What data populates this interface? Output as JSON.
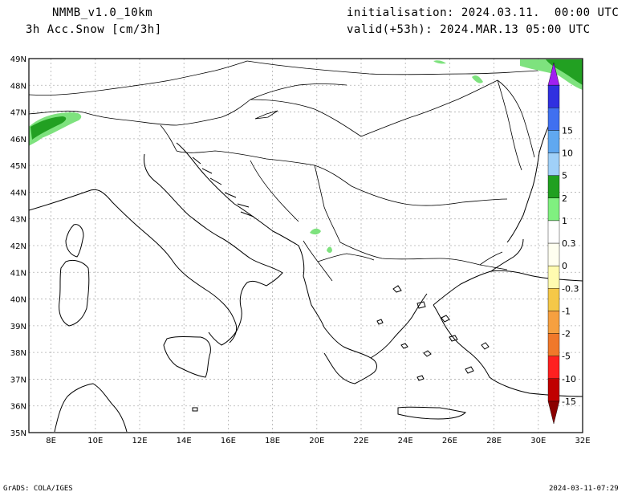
{
  "header": {
    "model": "NMMB_v1.0_10km",
    "variable": "3h Acc.Snow [cm/3h]",
    "init": "initialisation: 2024.03.11.  00:00 UTC",
    "valid": "valid(+53h): 2024.MAR.13 05:00 UTC"
  },
  "footer": {
    "left": "GrADS: COLA/IGES",
    "right": "2024-03-11-07:29"
  },
  "map": {
    "lon_min": 7,
    "lon_max": 32,
    "lat_min": 35,
    "lat_max": 49,
    "x_ticks": [
      {
        "value": 8,
        "label": "8E"
      },
      {
        "value": 10,
        "label": "10E"
      },
      {
        "value": 12,
        "label": "12E"
      },
      {
        "value": 14,
        "label": "14E"
      },
      {
        "value": 16,
        "label": "16E"
      },
      {
        "value": 18,
        "label": "18E"
      },
      {
        "value": 20,
        "label": "20E"
      },
      {
        "value": 22,
        "label": "22E"
      },
      {
        "value": 24,
        "label": "24E"
      },
      {
        "value": 26,
        "label": "26E"
      },
      {
        "value": 28,
        "label": "28E"
      },
      {
        "value": 30,
        "label": "30E"
      },
      {
        "value": 32,
        "label": "32E"
      }
    ],
    "y_ticks": [
      {
        "value": 49,
        "label": "49N"
      },
      {
        "value": 48,
        "label": "48N"
      },
      {
        "value": 47,
        "label": "47N"
      },
      {
        "value": 46,
        "label": "46N"
      },
      {
        "value": 45,
        "label": "45N"
      },
      {
        "value": 44,
        "label": "44N"
      },
      {
        "value": 43,
        "label": "43N"
      },
      {
        "value": 42,
        "label": "42N"
      },
      {
        "value": 41,
        "label": "41N"
      },
      {
        "value": 40,
        "label": "40N"
      },
      {
        "value": 39,
        "label": "39N"
      },
      {
        "value": 38,
        "label": "38N"
      },
      {
        "value": 37,
        "label": "37N"
      },
      {
        "value": 36,
        "label": "36N"
      },
      {
        "value": 35,
        "label": "35N"
      }
    ]
  },
  "colorbar": {
    "colors": [
      "#8b0000",
      "#c00000",
      "#ff2020",
      "#f0782a",
      "#f6a040",
      "#f5c848",
      "#fffbb0",
      "#fffff0",
      "#ffffff",
      "#80f080",
      "#20a020",
      "#a0d0f8",
      "#60a8f0",
      "#4070f0",
      "#3030e0",
      "#a020f0"
    ],
    "labels": [
      "-15",
      "-10",
      "-5",
      "-2",
      "-1",
      "-0.3",
      "0",
      "0.3",
      "1",
      "2",
      "5",
      "10",
      "15"
    ]
  },
  "colors": {
    "snow_light": "#7ee27e",
    "snow_mid": "#22a022",
    "snow_dark": "#1a8a1a",
    "coastline": "#000000",
    "grid": "#b0b0b0"
  }
}
